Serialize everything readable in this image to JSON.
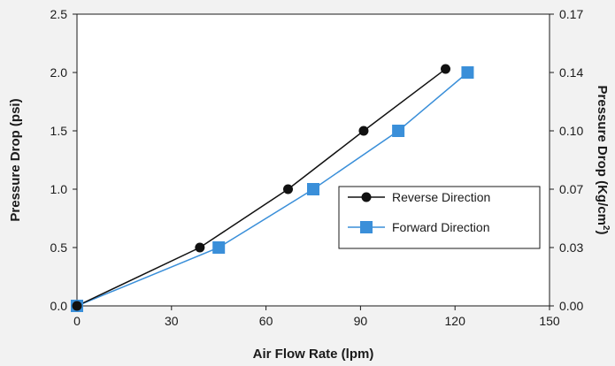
{
  "chart_data": {
    "type": "line",
    "xlabel": "Air Flow Rate (lpm)",
    "ylabel": "Pressure Drop (psi)",
    "y2label": "Pressure Drop (Kg/cm",
    "y2label_sup": "2",
    "y2label_end": ")",
    "xlim": [
      0,
      150
    ],
    "ylim": [
      0,
      2.5
    ],
    "xticks": [
      "0",
      "30",
      "60",
      "90",
      "120",
      "150"
    ],
    "yticks": [
      "0.0",
      "0.5",
      "1.0",
      "1.5",
      "2.0",
      "2.5"
    ],
    "y2ticks": [
      "0.00",
      "0.03",
      "0.07",
      "0.10",
      "0.14",
      "0.17"
    ],
    "grid": false,
    "legend_position": "center-right",
    "series": [
      {
        "name": "Reverse Direction",
        "color": "#111111",
        "marker": "circle",
        "x": [
          0,
          39,
          67,
          91,
          117
        ],
        "y": [
          0.0,
          0.5,
          1.0,
          1.5,
          2.03
        ]
      },
      {
        "name": "Forward Direction",
        "color": "#3a8fd9",
        "marker": "square",
        "x": [
          0,
          45,
          75,
          102,
          124
        ],
        "y": [
          0.0,
          0.5,
          1.0,
          1.5,
          2.0
        ]
      }
    ]
  }
}
